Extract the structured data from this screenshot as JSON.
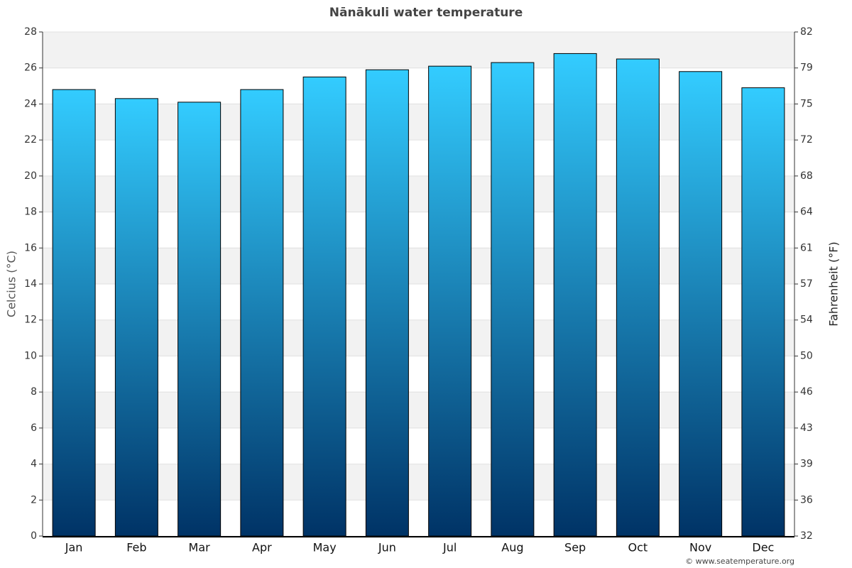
{
  "chart_data": {
    "type": "bar",
    "title": "Nānākuli water temperature",
    "y_label": "Celcius (°C)",
    "y2_label": "Fahrenheit (°F)",
    "categories": [
      "Jan",
      "Feb",
      "Mar",
      "Apr",
      "May",
      "Jun",
      "Jul",
      "Aug",
      "Sep",
      "Oct",
      "Nov",
      "Dec"
    ],
    "values": [
      24.8,
      24.3,
      24.1,
      24.8,
      25.5,
      25.9,
      26.1,
      26.3,
      26.8,
      26.5,
      25.8,
      24.9
    ],
    "color": [
      "#33ccff",
      "#003366"
    ],
    "ylim": [
      0,
      28
    ],
    "yticks": [
      0,
      2,
      4,
      6,
      8,
      10,
      12,
      14,
      16,
      18,
      20,
      22,
      24,
      26,
      28
    ],
    "y2lim": [
      32,
      82.4
    ],
    "y2ticks": [
      32,
      {
        "value": 35.6,
        "label": "36"
      },
      {
        "value": 39.2,
        "label": "39"
      },
      {
        "value": 42.8,
        "label": "43"
      },
      {
        "value": 46.4,
        "label": "46"
      },
      50,
      {
        "value": 53.6,
        "label": "54"
      },
      {
        "value": 57.2,
        "label": "57"
      },
      {
        "value": 60.8,
        "label": "61"
      },
      {
        "value": 64.4,
        "label": "64"
      },
      68,
      {
        "value": 71.6,
        "label": "72"
      },
      {
        "value": 75.2,
        "label": "75"
      },
      {
        "value": 78.8,
        "label": "79"
      },
      {
        "value": 82.4,
        "label": "82"
      }
    ],
    "grid": true,
    "credit": "© www.seatemperature.org"
  }
}
